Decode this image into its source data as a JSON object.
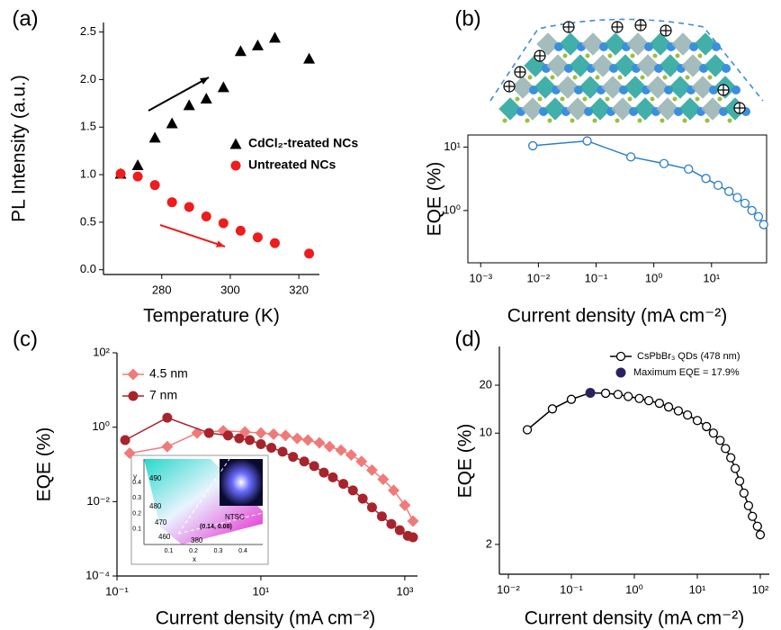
{
  "chart_data": [
    {
      "type": "scatter",
      "panel_label": "(a)",
      "x_label": "Temperature (K)",
      "y_label": "PL Intensity (a.u.)",
      "xlim": [
        263,
        326
      ],
      "ylim": [
        -0.05,
        2.6
      ],
      "xticks": [
        280,
        300,
        320
      ],
      "yticks": [
        {
          "value": 0,
          "label": "0.0"
        },
        0.5,
        {
          "value": 1,
          "label": "1.0"
        },
        1.5,
        {
          "value": 2,
          "label": "2.0"
        },
        2.5
      ],
      "legend": "right",
      "series": [
        {
          "name": "CdCl₂-treated NCs",
          "color": "#000000",
          "marker": "triangle",
          "x": [
            268,
            273,
            278,
            283,
            288,
            293,
            298,
            303,
            308,
            313,
            323
          ],
          "values": [
            1.01,
            1.1,
            1.39,
            1.54,
            1.73,
            1.8,
            1.92,
            2.3,
            2.36,
            2.44,
            2.22
          ]
        },
        {
          "name": "Untreated NCs",
          "color": "#ee1c1c",
          "marker": "circle",
          "x": [
            268,
            273,
            278,
            283,
            288,
            293,
            298,
            303,
            308,
            313,
            323
          ],
          "values": [
            1.01,
            0.98,
            0.89,
            0.71,
            0.66,
            0.56,
            0.49,
            0.41,
            0.34,
            0.28,
            0.17
          ]
        }
      ]
    },
    {
      "type": "line",
      "panel_label": "(b)",
      "x_label": "Current density (mA cm⁻²)",
      "y_label": "EQE (%)",
      "xscale": "log",
      "yscale": "log",
      "xlim": [
        0.0006,
        90
      ],
      "ylim": [
        0.15,
        15.5
      ],
      "xticks": [
        {
          "value": 0.001,
          "label": "10⁻³"
        },
        {
          "value": 0.01,
          "label": "10⁻²"
        },
        {
          "value": 0.1,
          "label": "10⁻¹"
        },
        {
          "value": 1,
          "label": "10⁰"
        },
        {
          "value": 10,
          "label": "10¹"
        }
      ],
      "yticks": [
        {
          "value": 1,
          "label": "10⁰"
        },
        {
          "value": 10,
          "label": "10¹"
        }
      ],
      "series": [
        {
          "color": "#2a7fc8",
          "marker": "open-circle",
          "line": true,
          "x": [
            0.008,
            0.07,
            0.4,
            1.5,
            4,
            8,
            13,
            20,
            28,
            38,
            50,
            65,
            80
          ],
          "values": [
            10.5,
            12.5,
            7,
            5.5,
            4.5,
            3.2,
            2.5,
            2.0,
            1.6,
            1.3,
            1.0,
            0.8,
            0.6
          ]
        }
      ]
    },
    {
      "type": "line",
      "panel_label": "(c)",
      "x_label": "Current density (mA cm⁻²)",
      "y_label": "EQE (%)",
      "xscale": "log",
      "yscale": "log",
      "xlim": [
        0.1,
        1500
      ],
      "ylim": [
        0.0001,
        100
      ],
      "xticks": [
        {
          "value": 0.1,
          "label": "10⁻¹"
        },
        {
          "value": 10,
          "label": "10¹"
        },
        {
          "value": 1000,
          "label": "10³"
        }
      ],
      "yticks": [
        {
          "value": 0.0001,
          "label": "10⁻⁴"
        },
        {
          "value": 0.01,
          "label": "10⁻²"
        },
        {
          "value": 1,
          "label": "10⁰"
        },
        {
          "value": 100,
          "label": "10²"
        }
      ],
      "legend": "upper left",
      "series": [
        {
          "name": "4.5 nm",
          "color": "#f07a7a",
          "marker": "diamond",
          "line": true,
          "x": [
            0.15,
            0.5,
            1.3,
            3,
            6,
            10,
            15,
            22,
            32,
            45,
            65,
            90,
            130,
            180,
            250,
            350,
            500,
            700,
            1000,
            1300
          ],
          "values": [
            0.2,
            0.3,
            0.7,
            0.8,
            0.75,
            0.7,
            0.65,
            0.6,
            0.5,
            0.45,
            0.38,
            0.3,
            0.24,
            0.18,
            0.12,
            0.07,
            0.04,
            0.02,
            0.008,
            0.003
          ]
        },
        {
          "name": "7 nm",
          "color": "#a8242c",
          "marker": "circle",
          "line": true,
          "x": [
            0.13,
            0.5,
            1.9,
            3.5,
            5,
            7,
            10,
            14,
            20,
            28,
            40,
            55,
            75,
            100,
            140,
            190,
            260,
            350,
            480,
            650,
            850,
            1100,
            1300
          ],
          "values": [
            0.45,
            1.8,
            0.7,
            0.6,
            0.5,
            0.45,
            0.35,
            0.28,
            0.22,
            0.16,
            0.12,
            0.09,
            0.06,
            0.045,
            0.03,
            0.02,
            0.012,
            0.007,
            0.004,
            0.0025,
            0.0017,
            0.0012,
            0.0011
          ]
        }
      ],
      "inset": {
        "x_label": "x",
        "y_label": "y",
        "xlim": [
          0,
          0.48
        ],
        "ylim": [
          0,
          0.55
        ],
        "xticks": [
          0.1,
          0.2,
          0.3,
          0.4
        ],
        "yticks": [
          0.1,
          0.2,
          0.3,
          0.4
        ],
        "annotations": [
          "490",
          "480",
          "470",
          "460",
          "380",
          "NTSC",
          "(0.14, 0.08)"
        ]
      }
    },
    {
      "type": "line",
      "panel_label": "(d)",
      "x_label": "Current density (mA cm⁻²)",
      "y_label": "EQE (%)",
      "xscale": "log",
      "yscale": "log",
      "xlim": [
        0.0072,
        139
      ],
      "ylim": [
        1.3,
        35
      ],
      "xticks": [
        {
          "value": 0.01,
          "label": "10⁻²"
        },
        {
          "value": 0.1,
          "label": "10⁻¹"
        },
        {
          "value": 1,
          "label": "10⁰"
        },
        {
          "value": 10,
          "label": "10¹"
        },
        {
          "value": 100,
          "label": "10²"
        }
      ],
      "yticks": [
        2,
        10,
        20
      ],
      "legend": "upper right",
      "series": [
        {
          "name": "CsPbBr₃ QDs (478 nm)",
          "color": "#000000",
          "marker": "open-circle",
          "line": true,
          "x": [
            0.02,
            0.05,
            0.1,
            0.2,
            0.35,
            0.55,
            0.8,
            1.2,
            1.7,
            2.5,
            3.5,
            5,
            7,
            10,
            14,
            18,
            23,
            28,
            34,
            40,
            47,
            55,
            65,
            75,
            90,
            100
          ],
          "values": [
            10.5,
            14.2,
            16.3,
            17.9,
            17.8,
            17.5,
            17.0,
            16.5,
            16.0,
            15.4,
            14.6,
            13.8,
            13.0,
            12.0,
            11.0,
            10.0,
            9.0,
            8.0,
            7.0,
            6.0,
            5.0,
            4.2,
            3.5,
            3.0,
            2.6,
            2.3
          ]
        },
        {
          "name": "Maximum EQE = 17.9%",
          "color": "#2b2060",
          "marker": "circle",
          "x": [
            0.2
          ],
          "values": [
            17.9
          ]
        }
      ]
    }
  ]
}
